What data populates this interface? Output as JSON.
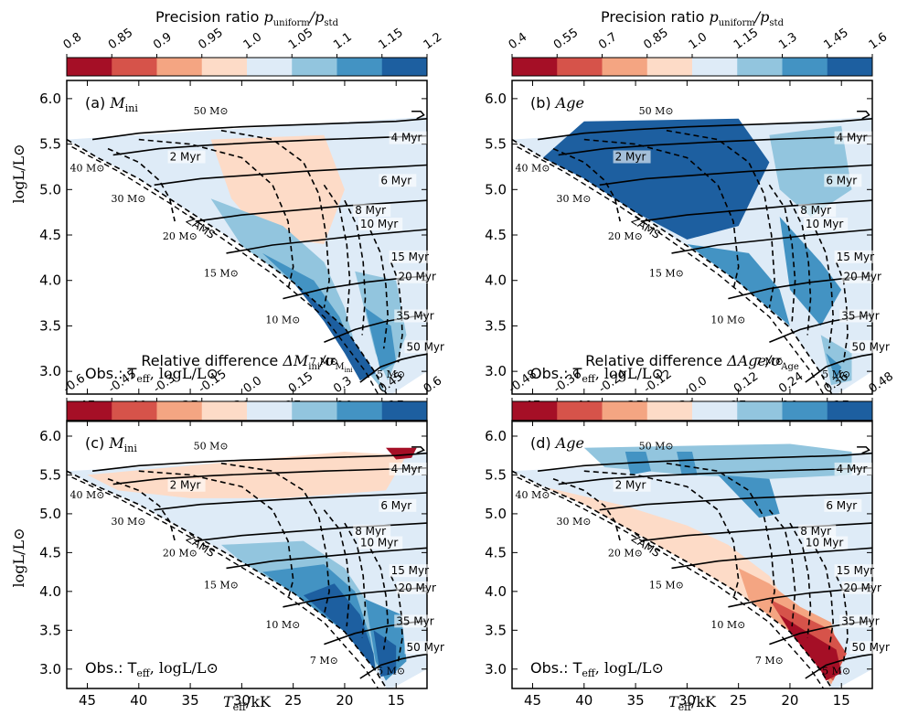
{
  "figure": {
    "x_axis_label_main": "T",
    "x_axis_label_sub": "eff",
    "x_axis_label_unit": "/kK",
    "y_axis_label": "logL/L⊙"
  },
  "chart_data": [
    {
      "type": "heatmap",
      "panel_label": "(a)",
      "quantity_main": "M",
      "quantity_sub": "ini",
      "colorbar": {
        "title_text": "Precision ratio",
        "title_math": "p",
        "title_math_sub1": "uniform",
        "title_sep": "/p",
        "title_math_sub2": "std",
        "ticks": [
          "0.8",
          "0.85",
          "0.9",
          "0.95",
          "1.0",
          "1.05",
          "1.1",
          "1.15",
          "1.2"
        ],
        "colors": [
          "#a50f26",
          "#d6534a",
          "#f4a582",
          "#fddbc7",
          "#deebf7",
          "#92c5de",
          "#4393c3",
          "#1d5fa0"
        ]
      },
      "observables_text": "Obs.: T",
      "observables_sub": "eff",
      "observables_rest": ", logL/L⊙",
      "xlim": [
        47,
        12
      ],
      "ylim": [
        2.75,
        6.2
      ],
      "x_ticks": [
        "45",
        "40",
        "35",
        "30",
        "25",
        "20",
        "15"
      ],
      "y_ticks": [
        "3.0",
        "3.5",
        "4.0",
        "4.5",
        "5.0",
        "5.5",
        "6.0"
      ],
      "dominant_value_region": "blue (ratio > 1) at low masses / cool side; light red near 30–15 kK upper region"
    },
    {
      "type": "heatmap",
      "panel_label": "(b)",
      "quantity_main": "Age",
      "colorbar": {
        "title_text": "Precision ratio",
        "title_math": "p",
        "title_math_sub1": "uniform",
        "title_sep": "/p",
        "title_math_sub2": "std",
        "ticks": [
          "0.4",
          "0.55",
          "0.7",
          "0.85",
          "1.0",
          "1.15",
          "1.3",
          "1.45",
          "1.6"
        ],
        "colors": [
          "#a50f26",
          "#d6534a",
          "#f4a582",
          "#fddbc7",
          "#deebf7",
          "#92c5de",
          "#4393c3",
          "#1d5fa0"
        ]
      },
      "observables_text": "Obs.: T",
      "observables_sub": "eff",
      "observables_rest": ", logL/L⊙",
      "xlim": [
        47,
        12
      ],
      "ylim": [
        2.75,
        6.2
      ],
      "x_ticks": [
        "45",
        "40",
        "35",
        "30",
        "25",
        "20",
        "15"
      ],
      "y_ticks": [
        "3.0",
        "3.5",
        "4.0",
        "4.5",
        "5.0",
        "5.5",
        "6.0"
      ],
      "dominant_value_region": "strong blue (ratio up to 1.6) near ZAMS upper region"
    },
    {
      "type": "heatmap",
      "panel_label": "(c)",
      "quantity_main": "M",
      "quantity_sub": "ini",
      "colorbar": {
        "title_text": "Relative difference",
        "title_math": "ΔM",
        "title_math_sub1": "ini",
        "title_sep": "/σ",
        "title_math_sub2": "M",
        "title_math_sub3": "ini",
        "ticks": [
          "-0.6",
          "-0.45",
          "-0.3",
          "-0.15",
          "0.0",
          "0.15",
          "0.3",
          "0.45",
          "0.6"
        ],
        "colors": [
          "#a50f26",
          "#d6534a",
          "#f4a582",
          "#fddbc7",
          "#deebf7",
          "#92c5de",
          "#4393c3",
          "#1d5fa0"
        ]
      },
      "observables_text": "Obs.: T",
      "observables_sub": "eff",
      "observables_rest": ", logL/L⊙",
      "xlim": [
        47,
        12
      ],
      "ylim": [
        2.75,
        6.2
      ],
      "x_ticks": [
        "45",
        "40",
        "35",
        "30",
        "25",
        "20",
        "15"
      ],
      "y_ticks": [
        "3.0",
        "3.5",
        "4.0",
        "4.5",
        "5.0",
        "5.5",
        "6.0"
      ],
      "dominant_value_region": "blue at lower masses near ZAMS; light red at high luminosity"
    },
    {
      "type": "heatmap",
      "panel_label": "(d)",
      "quantity_main": "Age",
      "colorbar": {
        "title_text": "Relative difference",
        "title_math": "ΔAge",
        "title_sep": "/σ",
        "title_math_sub2": "Age",
        "ticks": [
          "-0.48",
          "-0.36",
          "-0.24",
          "-0.12",
          "0.0",
          "0.12",
          "0.24",
          "0.36",
          "0.48"
        ],
        "colors": [
          "#a50f26",
          "#d6534a",
          "#f4a582",
          "#fddbc7",
          "#deebf7",
          "#92c5de",
          "#4393c3",
          "#1d5fa0"
        ]
      },
      "observables_text": "Obs.: T",
      "observables_sub": "eff",
      "observables_rest": ", logL/L⊙",
      "xlim": [
        47,
        12
      ],
      "ylim": [
        2.75,
        6.2
      ],
      "x_ticks": [
        "45",
        "40",
        "35",
        "30",
        "25",
        "20",
        "15"
      ],
      "y_ticks": [
        "3.0",
        "3.5",
        "4.0",
        "4.5",
        "5.0",
        "5.5",
        "6.0"
      ],
      "dominant_value_region": "dark red at low masses/cool side; blue at high luminosity"
    }
  ],
  "overlay": {
    "zams_label": "ZAMS",
    "mass_labels": [
      "50 M⊙",
      "40 M⊙",
      "30 M⊙",
      "20 M⊙",
      "15 M⊙",
      "10 M⊙",
      "7 M⊙",
      "5 M⊙"
    ],
    "isochrone_labels": [
      "2 Myr",
      "4 Myr",
      "6 Myr",
      "8 Myr",
      "10 Myr",
      "15 Myr",
      "20 Myr",
      "35 Myr",
      "50 Myr"
    ],
    "zams_track": [
      [
        47,
        5.55
      ],
      [
        44,
        5.35
      ],
      [
        40,
        5.12
      ],
      [
        35,
        4.75
      ],
      [
        30,
        4.38
      ],
      [
        25,
        3.98
      ],
      [
        20,
        3.48
      ],
      [
        17,
        2.98
      ],
      [
        15.8,
        2.72
      ]
    ],
    "tracks": [
      {
        "mass": "50 M⊙",
        "pts": [
          [
            44.5,
            5.55
          ],
          [
            40,
            5.62
          ],
          [
            35,
            5.66
          ],
          [
            30,
            5.69
          ],
          [
            25,
            5.71
          ],
          [
            20,
            5.73
          ],
          [
            15,
            5.75
          ],
          [
            12,
            5.78
          ]
        ]
      },
      {
        "mass": "40 M⊙",
        "pts": [
          [
            42.5,
            5.38
          ],
          [
            38,
            5.45
          ],
          [
            33,
            5.49
          ],
          [
            28,
            5.52
          ],
          [
            22,
            5.55
          ],
          [
            17,
            5.57
          ],
          [
            12,
            5.59
          ]
        ]
      },
      {
        "mass": "30 M⊙",
        "pts": [
          [
            38.5,
            5.05
          ],
          [
            34,
            5.12
          ],
          [
            29,
            5.16
          ],
          [
            24,
            5.2
          ],
          [
            19,
            5.23
          ],
          [
            15,
            5.25
          ],
          [
            12,
            5.27
          ]
        ]
      },
      {
        "mass": "20 M⊙",
        "pts": [
          [
            34.5,
            4.65
          ],
          [
            30,
            4.72
          ],
          [
            25,
            4.77
          ],
          [
            20,
            4.82
          ],
          [
            16,
            4.85
          ],
          [
            12,
            4.88
          ]
        ]
      },
      {
        "mass": "15 M⊙",
        "pts": [
          [
            31.5,
            4.3
          ],
          [
            27,
            4.39
          ],
          [
            22,
            4.45
          ],
          [
            18,
            4.5
          ],
          [
            14,
            4.54
          ],
          [
            12,
            4.56
          ]
        ]
      },
      {
        "mass": "10 M⊙",
        "pts": [
          [
            26,
            3.8
          ],
          [
            22,
            3.91
          ],
          [
            18,
            3.98
          ],
          [
            14,
            4.03
          ],
          [
            12,
            4.05
          ]
        ]
      },
      {
        "mass": "7 M⊙",
        "pts": [
          [
            22,
            3.32
          ],
          [
            19,
            3.46
          ],
          [
            16,
            3.55
          ],
          [
            13.5,
            3.6
          ],
          [
            12,
            3.62
          ]
        ]
      },
      {
        "mass": "5 M⊙",
        "pts": [
          [
            18.5,
            2.88
          ],
          [
            16.5,
            3.05
          ],
          [
            14.5,
            3.13
          ],
          [
            13,
            3.17
          ],
          [
            12,
            3.19
          ]
        ]
      }
    ],
    "isochrones": [
      {
        "label": "2 Myr",
        "pts": [
          [
            43,
            5.45
          ],
          [
            40,
            5.3
          ],
          [
            38,
            5.1
          ],
          [
            37,
            4.9
          ],
          [
            36.5,
            4.65
          ]
        ]
      },
      {
        "label": "4 Myr",
        "pts": [
          [
            40,
            5.55
          ],
          [
            35,
            5.5
          ],
          [
            30,
            5.35
          ],
          [
            27,
            5.05
          ],
          [
            25.5,
            4.65
          ],
          [
            25,
            4.15
          ],
          [
            25.5,
            3.9
          ]
        ]
      },
      {
        "label": "6 Myr",
        "pts": [
          [
            32,
            5.65
          ],
          [
            27,
            5.55
          ],
          [
            24,
            5.3
          ],
          [
            22.5,
            4.95
          ],
          [
            21.8,
            4.5
          ],
          [
            21.5,
            4.0
          ],
          [
            22,
            3.7
          ]
        ]
      },
      {
        "label": "8 Myr",
        "pts": [
          [
            22,
            5.05
          ],
          [
            20.5,
            4.8
          ],
          [
            19.8,
            4.4
          ],
          [
            19.5,
            4.0
          ],
          [
            19.8,
            3.55
          ]
        ]
      },
      {
        "label": "10 Myr",
        "pts": [
          [
            20,
            4.88
          ],
          [
            18.8,
            4.6
          ],
          [
            18.2,
            4.2
          ],
          [
            18,
            3.8
          ],
          [
            18.3,
            3.4
          ]
        ]
      },
      {
        "label": "15 Myr",
        "pts": [
          [
            17.5,
            4.55
          ],
          [
            16.5,
            4.3
          ],
          [
            16,
            3.95
          ],
          [
            15.8,
            3.6
          ],
          [
            16.2,
            3.25
          ]
        ]
      },
      {
        "label": "20 Myr",
        "pts": [
          [
            15.5,
            4.2
          ],
          [
            14.8,
            4.0
          ],
          [
            14.5,
            3.7
          ],
          [
            14.4,
            3.4
          ],
          [
            14.8,
            3.1
          ]
        ]
      }
    ]
  }
}
